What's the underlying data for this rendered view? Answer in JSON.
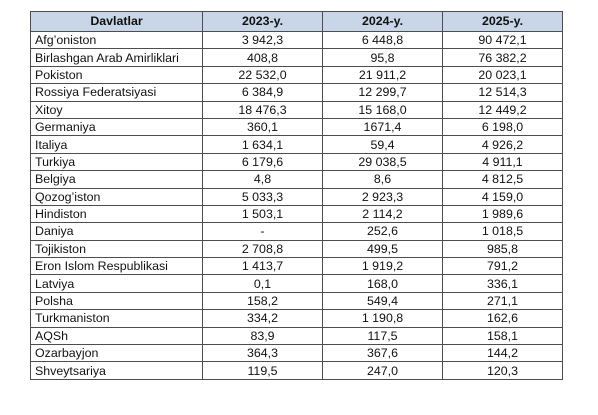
{
  "table": {
    "headers": [
      "Davlatlar",
      "2023-y.",
      "2024-y.",
      "2025-y."
    ],
    "rows": [
      [
        "Afg’oniston",
        "3 942,3",
        "6 448,8",
        "90 472,1"
      ],
      [
        "Birlashgan Arab Amirliklari",
        "408,8",
        "95,8",
        "76 382,2"
      ],
      [
        "Pokiston",
        "22 532,0",
        "21 911,2",
        "20 023,1"
      ],
      [
        "Rossiya Federatsiyasi",
        "6 384,9",
        "12 299,7",
        "12 514,3"
      ],
      [
        "Xitoy",
        "18 476,3",
        "15 168,0",
        "12 449,2"
      ],
      [
        "Germaniya",
        "360,1",
        "1671,4",
        "6 198,0"
      ],
      [
        "Italiya",
        "1 634,1",
        "59,4",
        "4 926,2"
      ],
      [
        "Turkiya",
        "6 179,6",
        "29 038,5",
        "4 911,1"
      ],
      [
        "Belgiya",
        "4,8",
        "8,6",
        "4 812,5"
      ],
      [
        "Qozog’iston",
        "5 033,3",
        "2 923,3",
        "4 159,0"
      ],
      [
        "Hindiston",
        "1 503,1",
        "2 114,2",
        "1 989,6"
      ],
      [
        "Daniya",
        "-",
        "252,6",
        "1 018,5"
      ],
      [
        "Tojikiston",
        "2 708,8",
        "499,5",
        "985,8"
      ],
      [
        "Eron Islom Respublikasi",
        "1 413,7",
        "1 919,2",
        "791,2"
      ],
      [
        "Latviya",
        "0,1",
        "168,0",
        "336,1"
      ],
      [
        "Polsha",
        "158,2",
        "549,4",
        "271,1"
      ],
      [
        "Turkmaniston",
        "334,2",
        "1 190,8",
        "162,6"
      ],
      [
        "AQSh",
        "83,9",
        "117,5",
        "158,1"
      ],
      [
        "Ozarbayjon",
        "364,3",
        "367,6",
        "144,2"
      ],
      [
        "Shveytsariya",
        "119,5",
        "247,0",
        "120,3"
      ]
    ]
  },
  "colors": {
    "header_background": "#c9d6e8",
    "border": "#4d4d4d"
  }
}
